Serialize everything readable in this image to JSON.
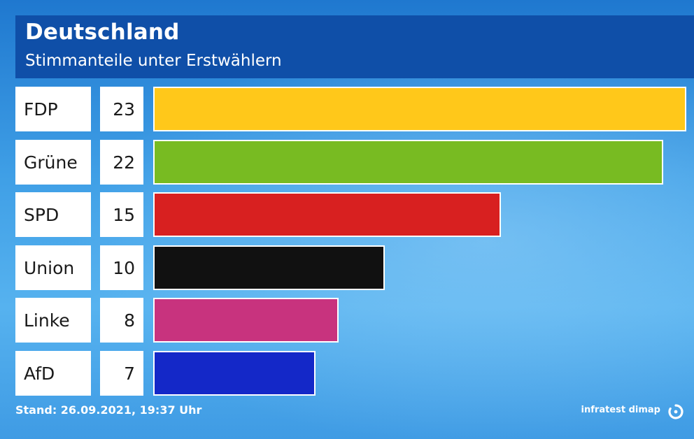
{
  "header": {
    "title": "Deutschland",
    "subtitle": "Stimmanteile unter Erstwählern"
  },
  "footer": {
    "stand": "Stand: 26.09.2021, 19:37 Uhr",
    "source": "infratest dimap"
  },
  "chart_data": {
    "type": "bar",
    "orientation": "horizontal",
    "title": "Deutschland",
    "subtitle": "Stimmanteile unter Erstwählern",
    "categories": [
      "FDP",
      "Grüne",
      "SPD",
      "Union",
      "Linke",
      "AfD"
    ],
    "values": [
      23,
      22,
      15,
      10,
      8,
      7
    ],
    "value_labels": [
      "23",
      "22",
      "15",
      "10",
      "8",
      "7"
    ],
    "colors": [
      "#ffc81a",
      "#78bb22",
      "#d82020",
      "#111111",
      "#c8337e",
      "#1428c8"
    ],
    "xlim": [
      0,
      23
    ],
    "xlabel": "",
    "ylabel": "",
    "grid": false,
    "legend": "none"
  }
}
